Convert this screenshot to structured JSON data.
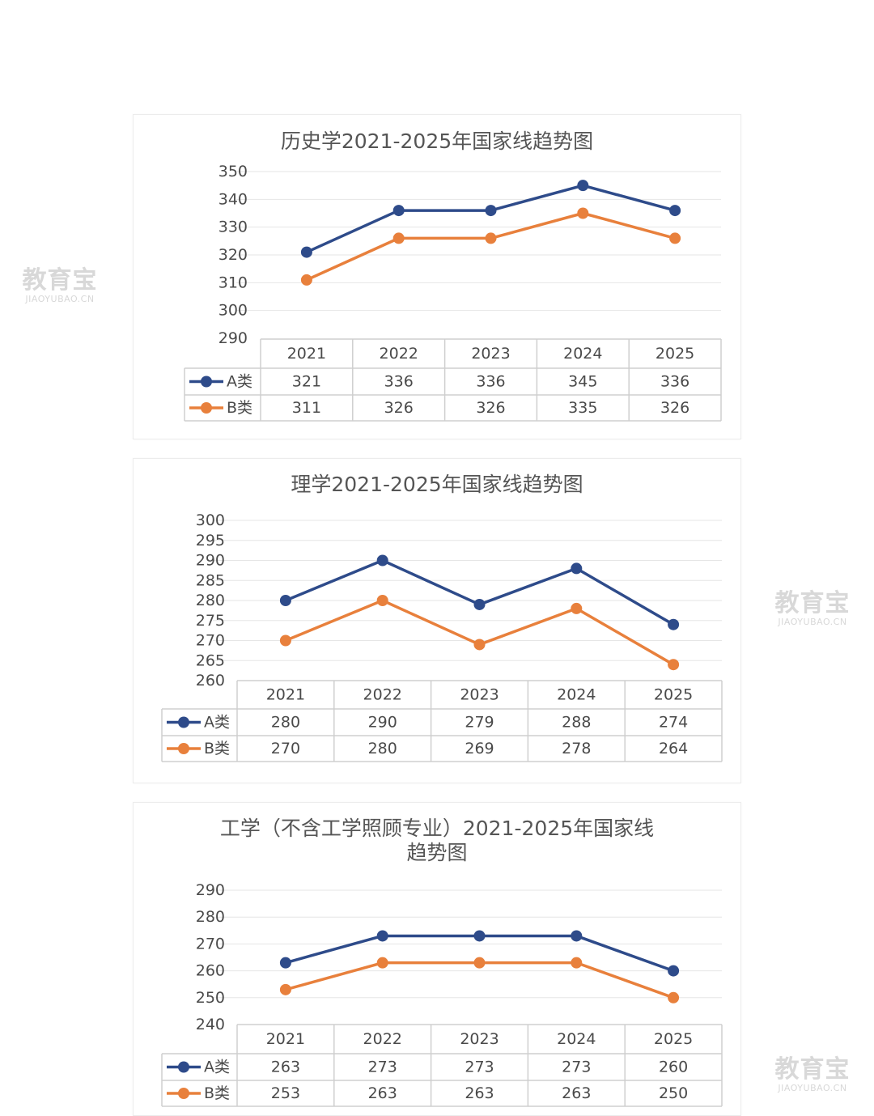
{
  "watermark": {
    "brand": "教育宝",
    "domain": "JIAOYUBAO.CN"
  },
  "chart_data": [
    {
      "type": "line",
      "title": "历史学2021-2025年国家线趋势图",
      "categories": [
        "2021",
        "2022",
        "2023",
        "2024",
        "2025"
      ],
      "yticks": [
        290,
        300,
        310,
        320,
        330,
        340,
        350
      ],
      "ylim": [
        290,
        350
      ],
      "grid": true,
      "legend": "data-table",
      "series": [
        {
          "name": "A类",
          "color": "#2e4b8a",
          "values": [
            321,
            336,
            336,
            345,
            336
          ]
        },
        {
          "name": "B类",
          "color": "#e8803c",
          "values": [
            311,
            326,
            326,
            335,
            326
          ]
        }
      ]
    },
    {
      "type": "line",
      "title": "理学2021-2025年国家线趋势图",
      "categories": [
        "2021",
        "2022",
        "2023",
        "2024",
        "2025"
      ],
      "yticks": [
        260,
        265,
        270,
        275,
        280,
        285,
        290,
        295,
        300
      ],
      "ylim": [
        260,
        300
      ],
      "grid": true,
      "legend": "data-table",
      "series": [
        {
          "name": "A类",
          "color": "#2e4b8a",
          "values": [
            280,
            290,
            279,
            288,
            274
          ]
        },
        {
          "name": "B类",
          "color": "#e8803c",
          "values": [
            270,
            280,
            269,
            278,
            264
          ]
        }
      ]
    },
    {
      "type": "line",
      "title": "工学（不含工学照顾专业）2021-2025年国家线",
      "subtitle": "趋势图",
      "categories": [
        "2021",
        "2022",
        "2023",
        "2024",
        "2025"
      ],
      "yticks": [
        240,
        250,
        260,
        270,
        280,
        290
      ],
      "ylim": [
        240,
        290
      ],
      "grid": true,
      "legend": "data-table",
      "series": [
        {
          "name": "A类",
          "color": "#2e4b8a",
          "values": [
            263,
            273,
            273,
            273,
            260
          ]
        },
        {
          "name": "B类",
          "color": "#e8803c",
          "values": [
            253,
            263,
            263,
            263,
            250
          ]
        }
      ]
    }
  ]
}
